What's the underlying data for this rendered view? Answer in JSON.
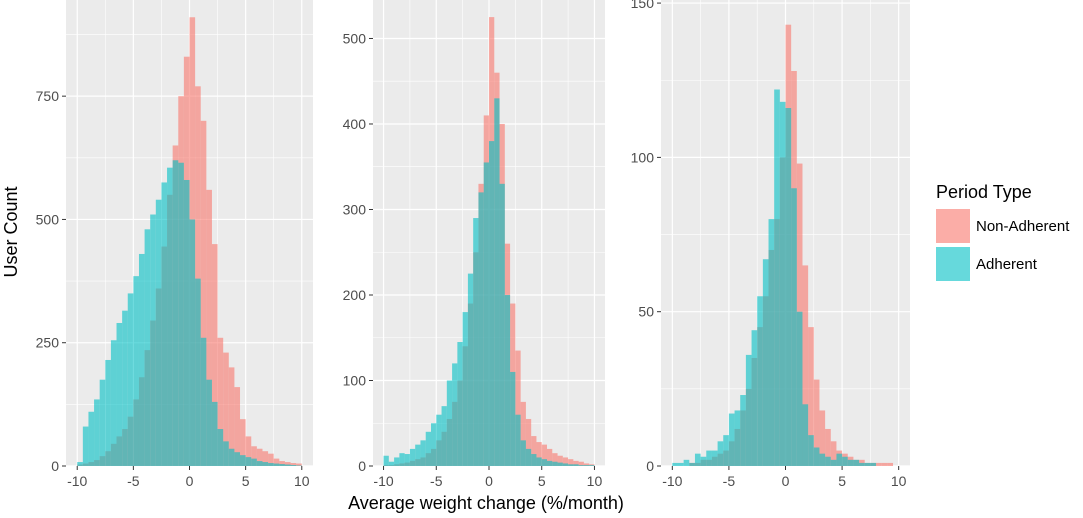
{
  "ylabel": "User Count",
  "xlabel": "Average weight change (%/month)",
  "legend": {
    "title": "Period Type",
    "placement": "right",
    "items": [
      {
        "label": "Non-Adherent",
        "color": "#F8766D"
      },
      {
        "label": "Adherent",
        "color": "#00BFC4"
      }
    ]
  },
  "chart_data": [
    {
      "type": "bar",
      "subtype": "overlaid-histogram",
      "xlim": [
        -11,
        11
      ],
      "ylim": [
        0,
        945
      ],
      "xticks": [
        "-10",
        "-5",
        "0",
        "5",
        "10"
      ],
      "yticks": [
        0,
        250,
        500,
        750
      ],
      "ytick_labels": [
        "0",
        "250",
        "500",
        "750"
      ],
      "bin_edges": [
        -10,
        -9.5,
        -9,
        -8.5,
        -8,
        -7.5,
        -7,
        -6.5,
        -6,
        -5.5,
        -5,
        -4.5,
        -4,
        -3.5,
        -3,
        -2.5,
        -2,
        -1.5,
        -1,
        -0.5,
        0,
        0.5,
        1,
        1.5,
        2,
        2.5,
        3,
        3.5,
        4,
        4.5,
        5,
        5.5,
        6,
        6.5,
        7,
        7.5,
        8,
        8.5,
        9,
        9.5,
        10
      ],
      "series": [
        {
          "name": "Non-Adherent",
          "color": "#F8766D",
          "values": [
            3,
            5,
            8,
            12,
            20,
            30,
            45,
            60,
            75,
            100,
            135,
            180,
            235,
            295,
            360,
            445,
            550,
            650,
            750,
            830,
            910,
            770,
            700,
            560,
            450,
            260,
            230,
            200,
            160,
            95,
            60,
            40,
            35,
            30,
            25,
            15,
            10,
            8,
            6,
            5
          ]
        },
        {
          "name": "Adherent",
          "color": "#00BFC4",
          "values": [
            8,
            80,
            110,
            135,
            175,
            215,
            255,
            290,
            315,
            350,
            385,
            430,
            480,
            510,
            540,
            575,
            605,
            620,
            615,
            580,
            500,
            380,
            260,
            175,
            130,
            75,
            50,
            35,
            28,
            22,
            18,
            15,
            10,
            8,
            6,
            5,
            4,
            3,
            2,
            1
          ]
        }
      ]
    },
    {
      "type": "bar",
      "subtype": "overlaid-histogram",
      "xlim": [
        -11,
        11
      ],
      "ylim": [
        0,
        545
      ],
      "xticks": [
        "-10",
        "-5",
        "0",
        "5",
        "10"
      ],
      "yticks": [
        0,
        100,
        200,
        300,
        400,
        500
      ],
      "ytick_labels": [
        "0",
        "100",
        "200",
        "300",
        "400",
        "500"
      ],
      "bin_edges": [
        -10,
        -9.5,
        -9,
        -8.5,
        -8,
        -7.5,
        -7,
        -6.5,
        -6,
        -5.5,
        -5,
        -4.5,
        -4,
        -3.5,
        -3,
        -2.5,
        -2,
        -1.5,
        -1,
        -0.5,
        0,
        0.5,
        1,
        1.5,
        2,
        2.5,
        3,
        3.5,
        4,
        4.5,
        5,
        5.5,
        6,
        6.5,
        7,
        7.5,
        8,
        8.5,
        9,
        9.5,
        10
      ],
      "series": [
        {
          "name": "Non-Adherent",
          "color": "#F8766D",
          "values": [
            1,
            1,
            2,
            3,
            4,
            6,
            8,
            10,
            15,
            20,
            30,
            40,
            55,
            75,
            100,
            140,
            190,
            250,
            330,
            410,
            525,
            460,
            400,
            260,
            190,
            135,
            75,
            55,
            35,
            28,
            25,
            20,
            15,
            12,
            10,
            8,
            6,
            5,
            3,
            2
          ]
        },
        {
          "name": "Adherent",
          "color": "#00BFC4",
          "values": [
            12,
            5,
            10,
            15,
            14,
            20,
            25,
            30,
            40,
            50,
            60,
            70,
            100,
            120,
            145,
            180,
            225,
            290,
            320,
            355,
            380,
            430,
            330,
            200,
            110,
            60,
            30,
            20,
            14,
            10,
            8,
            6,
            5,
            4,
            3,
            2,
            2,
            1,
            1,
            1
          ]
        }
      ]
    },
    {
      "type": "bar",
      "subtype": "overlaid-histogram",
      "xlim": [
        -11,
        11
      ],
      "ylim": [
        0,
        151
      ],
      "xticks": [
        "-10",
        "-5",
        "0",
        "5",
        "10"
      ],
      "yticks": [
        0,
        50,
        100,
        150
      ],
      "ytick_labels": [
        "0",
        "50",
        "100",
        "150"
      ],
      "bin_edges": [
        -10,
        -9.5,
        -9,
        -8.5,
        -8,
        -7.5,
        -7,
        -6.5,
        -6,
        -5.5,
        -5,
        -4.5,
        -4,
        -3.5,
        -3,
        -2.5,
        -2,
        -1.5,
        -1,
        -0.5,
        0,
        0.5,
        1,
        1.5,
        2,
        2.5,
        3,
        3.5,
        4,
        4.5,
        5,
        5.5,
        6,
        6.5,
        7,
        7.5,
        8,
        8.5,
        9,
        9.5,
        10
      ],
      "series": [
        {
          "name": "Non-Adherent",
          "color": "#F8766D",
          "values": [
            0,
            0,
            0,
            1,
            1,
            2,
            2,
            3,
            4,
            5,
            8,
            12,
            18,
            25,
            35,
            45,
            55,
            70,
            80,
            100,
            143,
            128,
            98,
            65,
            45,
            28,
            18,
            12,
            8,
            5,
            4,
            3,
            2,
            2,
            1,
            1,
            1,
            1,
            1,
            0
          ]
        },
        {
          "name": "Adherent",
          "color": "#00BFC4",
          "values": [
            1,
            1,
            2,
            1,
            4,
            3,
            5,
            5,
            8,
            10,
            17,
            18,
            23,
            36,
            44,
            55,
            67,
            80,
            122,
            118,
            116,
            90,
            50,
            20,
            10,
            6,
            4,
            3,
            2,
            4,
            3,
            2,
            2,
            1,
            1,
            1,
            0,
            0,
            0,
            0
          ]
        }
      ]
    }
  ]
}
